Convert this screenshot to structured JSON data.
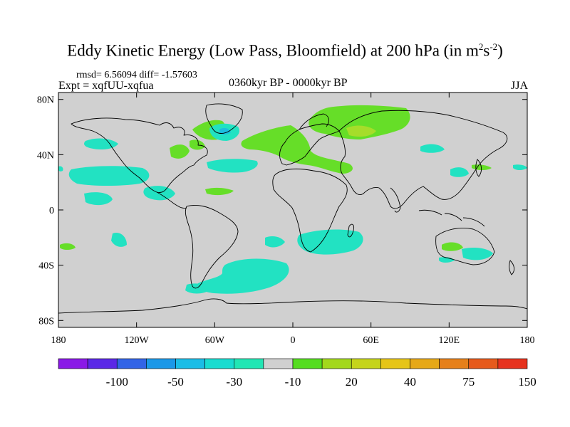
{
  "title": {
    "text": "Eddy Kinetic Energy (Low Pass, Bloomfield) at 200 hPa (in m",
    "sup1": "2",
    "mid": "s",
    "sup2": "-2",
    "close": ")"
  },
  "stats": "rmsd= 6.56094 diff= -1.57603",
  "expt": "Expt = xqfUU-xqfua",
  "period": "0360kyr BP - 0000kyr BP",
  "season": "JJA",
  "map": {
    "background_color": "#d0d0d0",
    "lat_labels": [
      "80N",
      "40N",
      "0",
      "40S",
      "80S"
    ],
    "lat_values": [
      80,
      40,
      0,
      -40,
      -80
    ],
    "lon_labels": [
      "180",
      "120W",
      "60W",
      "0",
      "60E",
      "120E",
      "180"
    ],
    "lon_values": [
      -180,
      -120,
      -60,
      0,
      60,
      120,
      180
    ]
  },
  "colorbar": {
    "colors": [
      "#8a19e6",
      "#5b28e6",
      "#3264e6",
      "#1b98e8",
      "#1bbde6",
      "#19dcd0",
      "#22e6b4",
      "#d0d0d0",
      "#55dd20",
      "#a3d81d",
      "#c5d41b",
      "#e6c518",
      "#e6a818",
      "#e6801a",
      "#e65a1c",
      "#e6321e"
    ],
    "labels": [
      "-100",
      "-50",
      "-30",
      "-10",
      "20",
      "40",
      "75",
      "150"
    ]
  },
  "colors": {
    "cyan": "#22e2c2",
    "green": "#66de28",
    "light_green": "#a6dd2a",
    "blue": "#1bbfdf",
    "coast": "#000000"
  }
}
